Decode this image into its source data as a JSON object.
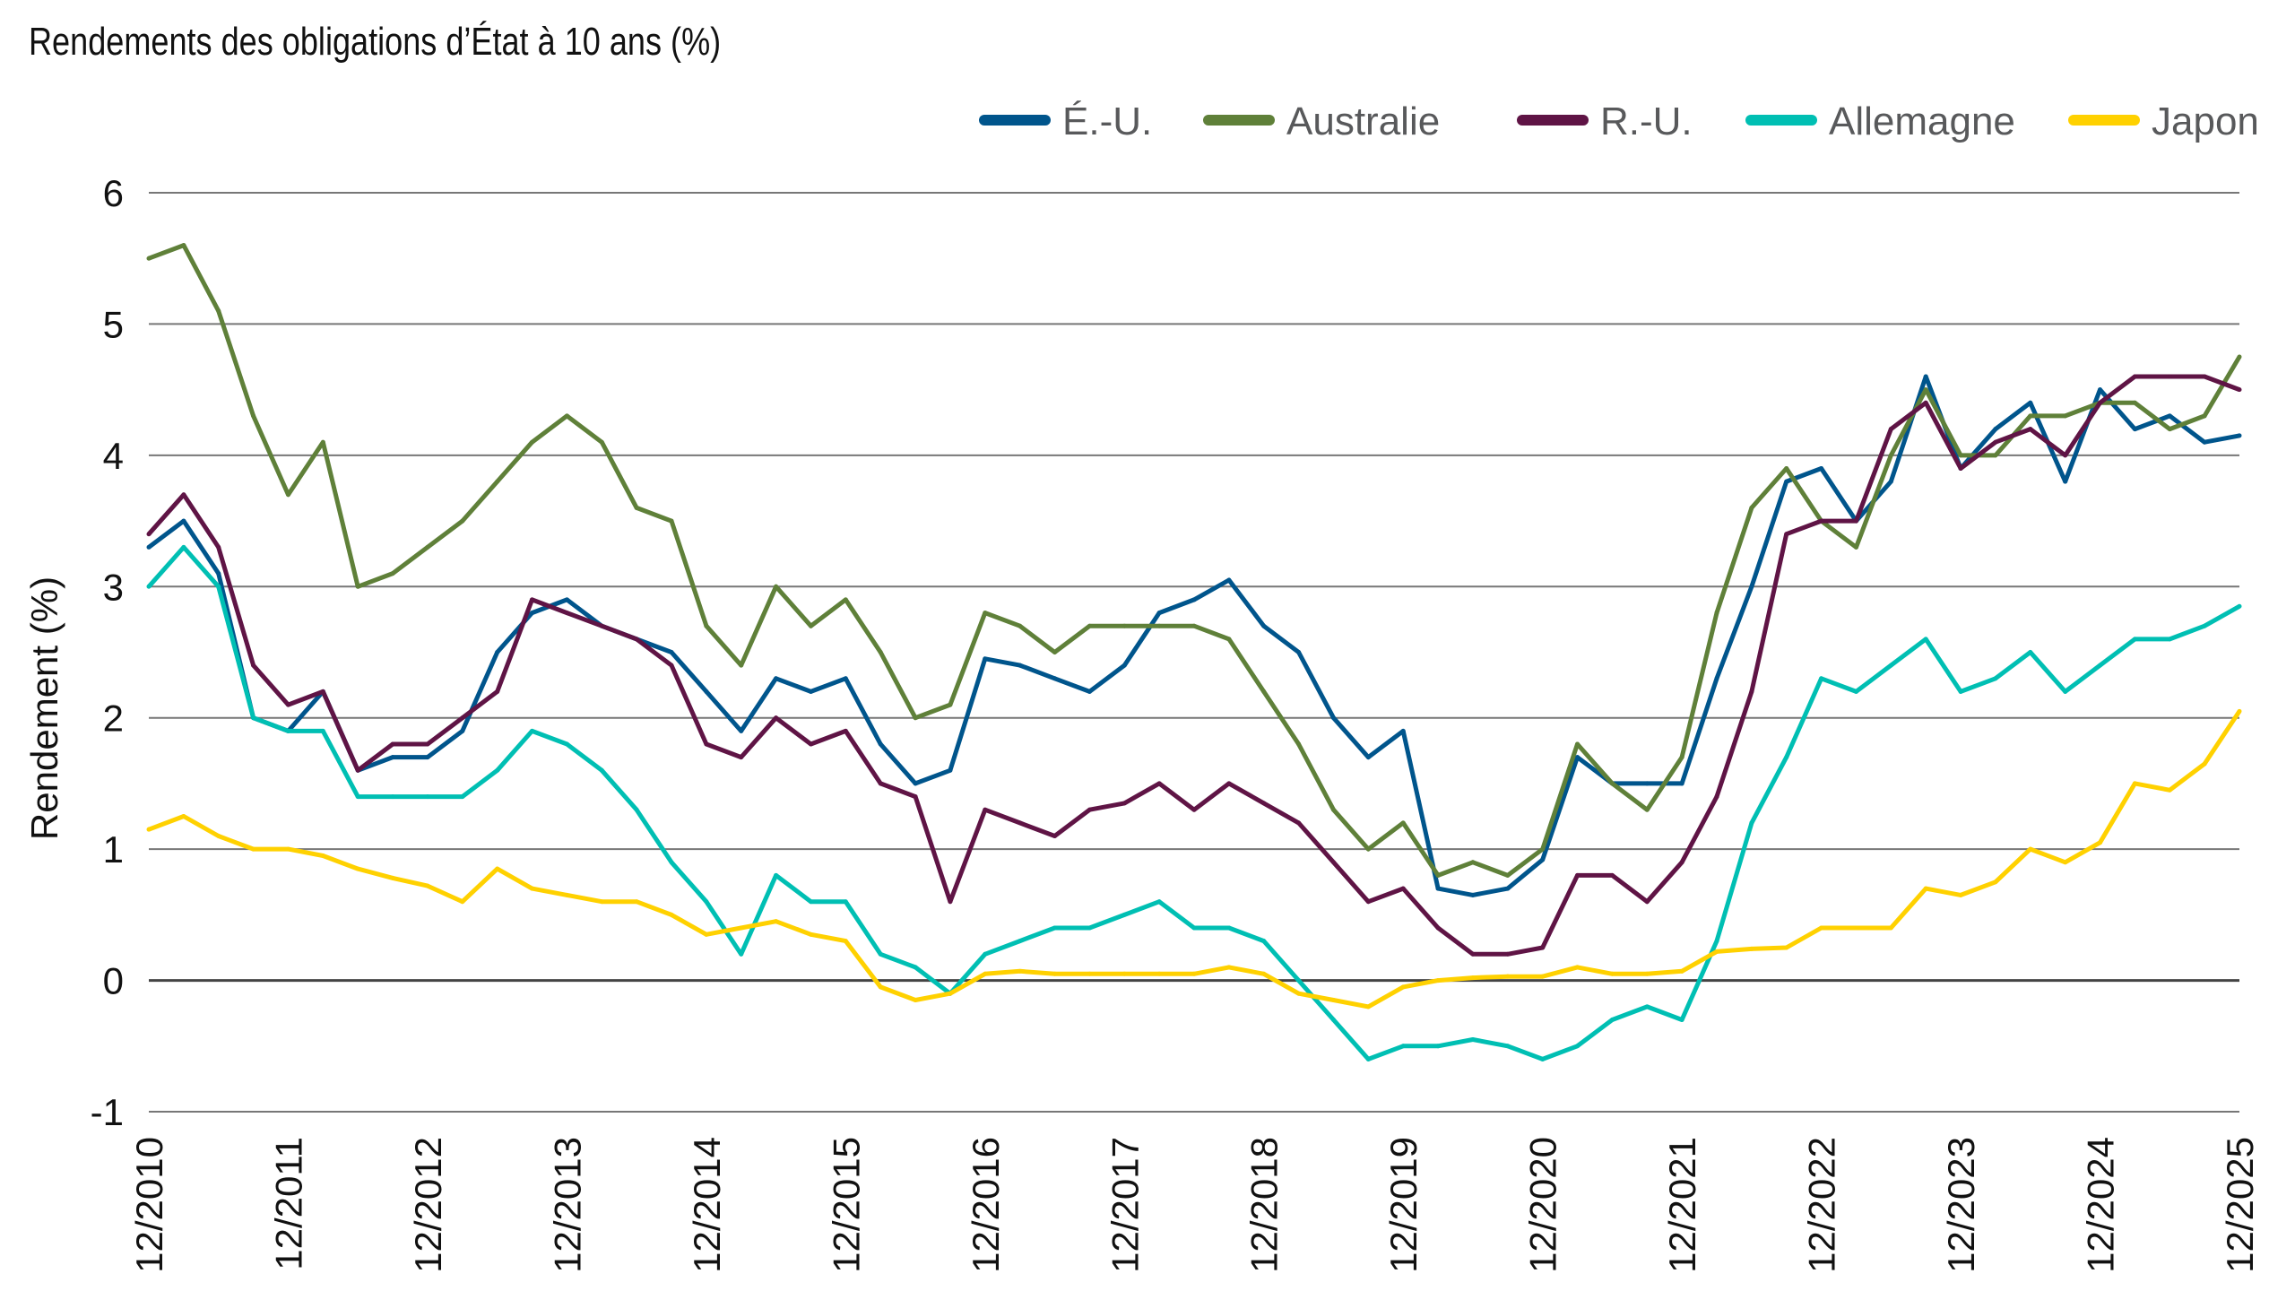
{
  "chart_data": {
    "type": "line",
    "title": "Rendements des obligations d’État à 10 ans (%)",
    "xlabel": "",
    "ylabel": "Rendement (%)",
    "ylim": [
      -1,
      6
    ],
    "yticks": [
      "-1",
      "0",
      "1",
      "2",
      "3",
      "4",
      "5",
      "6"
    ],
    "xticks": [
      "12/2010",
      "12/2011",
      "12/2012",
      "12/2013",
      "12/2014",
      "12/2015",
      "12/2016",
      "12/2017",
      "12/2018",
      "12/2019",
      "12/2020",
      "12/2021",
      "12/2022",
      "12/2023",
      "12/2024",
      "12/2025"
    ],
    "grid": "horizontal",
    "legend": "top-right",
    "x": [
      "2010-12",
      "2011-03",
      "2011-06",
      "2011-09",
      "2011-12",
      "2012-03",
      "2012-06",
      "2012-09",
      "2012-12",
      "2013-03",
      "2013-06",
      "2013-09",
      "2013-12",
      "2014-03",
      "2014-06",
      "2014-09",
      "2014-12",
      "2015-03",
      "2015-06",
      "2015-09",
      "2015-12",
      "2016-03",
      "2016-06",
      "2016-09",
      "2016-12",
      "2017-03",
      "2017-06",
      "2017-09",
      "2017-12",
      "2018-03",
      "2018-06",
      "2018-09",
      "2018-12",
      "2019-03",
      "2019-06",
      "2019-09",
      "2019-12",
      "2020-03",
      "2020-06",
      "2020-09",
      "2020-12",
      "2021-03",
      "2021-06",
      "2021-09",
      "2021-12",
      "2022-03",
      "2022-06",
      "2022-09",
      "2022-12",
      "2023-03",
      "2023-06",
      "2023-09",
      "2023-12",
      "2024-03",
      "2024-06",
      "2024-09",
      "2024-12",
      "2025-03",
      "2025-06",
      "2025-09",
      "2025-12"
    ],
    "series": [
      {
        "name": "É.-U.",
        "color": "#00558C",
        "values": [
          3.3,
          3.5,
          3.1,
          2.0,
          1.9,
          2.2,
          1.6,
          1.7,
          1.7,
          1.9,
          2.5,
          2.8,
          2.9,
          2.7,
          2.6,
          2.5,
          2.2,
          1.9,
          2.3,
          2.2,
          2.3,
          1.8,
          1.5,
          1.6,
          2.45,
          2.4,
          2.3,
          2.2,
          2.4,
          2.8,
          2.9,
          3.05,
          2.7,
          2.5,
          2.0,
          1.7,
          1.9,
          0.7,
          0.65,
          0.7,
          0.92,
          1.7,
          1.5,
          1.5,
          1.5,
          2.3,
          3.0,
          3.8,
          3.9,
          3.5,
          3.8,
          4.6,
          3.9,
          4.2,
          4.4,
          3.8,
          4.5,
          4.2,
          4.3,
          4.1,
          4.15
        ]
      },
      {
        "name": "Australie",
        "color": "#5F8039",
        "values": [
          5.5,
          5.6,
          5.1,
          4.3,
          3.7,
          4.1,
          3.0,
          3.1,
          3.3,
          3.5,
          3.8,
          4.1,
          4.3,
          4.1,
          3.6,
          3.5,
          2.7,
          2.4,
          3.0,
          2.7,
          2.9,
          2.5,
          2.0,
          2.1,
          2.8,
          2.7,
          2.5,
          2.7,
          2.7,
          2.7,
          2.7,
          2.6,
          2.2,
          1.8,
          1.3,
          1.0,
          1.2,
          0.8,
          0.9,
          0.8,
          1.0,
          1.8,
          1.5,
          1.3,
          1.7,
          2.8,
          3.6,
          3.9,
          3.5,
          3.3,
          4.0,
          4.5,
          4.0,
          4.0,
          4.3,
          4.3,
          4.4,
          4.4,
          4.2,
          4.3,
          4.75
        ]
      },
      {
        "name": "R.-U.",
        "color": "#5F1445",
        "values": [
          3.4,
          3.7,
          3.3,
          2.4,
          2.1,
          2.2,
          1.6,
          1.8,
          1.8,
          2.0,
          2.2,
          2.9,
          2.8,
          2.7,
          2.6,
          2.4,
          1.8,
          1.7,
          2.0,
          1.8,
          1.9,
          1.5,
          1.4,
          0.6,
          1.3,
          1.2,
          1.1,
          1.3,
          1.35,
          1.5,
          1.3,
          1.5,
          1.35,
          1.2,
          0.9,
          0.6,
          0.7,
          0.4,
          0.2,
          0.2,
          0.25,
          0.8,
          0.8,
          0.6,
          0.9,
          1.4,
          2.2,
          3.4,
          3.5,
          3.5,
          4.2,
          4.4,
          3.9,
          4.1,
          4.2,
          4.0,
          4.4,
          4.6,
          4.6,
          4.6,
          4.5
        ]
      },
      {
        "name": "Allemagne",
        "color": "#00BFB3",
        "values": [
          3.0,
          3.3,
          3.0,
          2.0,
          1.9,
          1.9,
          1.4,
          1.4,
          1.4,
          1.4,
          1.6,
          1.9,
          1.8,
          1.6,
          1.3,
          0.9,
          0.6,
          0.2,
          0.8,
          0.6,
          0.6,
          0.2,
          0.1,
          -0.1,
          0.2,
          0.3,
          0.4,
          0.4,
          0.5,
          0.6,
          0.4,
          0.4,
          0.3,
          0.0,
          -0.3,
          -0.6,
          -0.5,
          -0.5,
          -0.45,
          -0.5,
          -0.6,
          -0.5,
          -0.3,
          -0.2,
          -0.3,
          0.3,
          1.2,
          1.7,
          2.3,
          2.2,
          2.4,
          2.6,
          2.2,
          2.3,
          2.5,
          2.2,
          2.4,
          2.6,
          2.6,
          2.7,
          2.85
        ]
      },
      {
        "name": "Japon",
        "color": "#FFD100",
        "values": [
          1.15,
          1.25,
          1.1,
          1.0,
          1.0,
          0.95,
          0.85,
          0.78,
          0.72,
          0.6,
          0.85,
          0.7,
          0.65,
          0.6,
          0.6,
          0.5,
          0.35,
          0.4,
          0.45,
          0.35,
          0.3,
          -0.05,
          -0.15,
          -0.1,
          0.05,
          0.07,
          0.05,
          0.05,
          0.05,
          0.05,
          0.05,
          0.1,
          0.05,
          -0.1,
          -0.15,
          -0.2,
          -0.05,
          0.0,
          0.02,
          0.03,
          0.03,
          0.1,
          0.05,
          0.05,
          0.07,
          0.22,
          0.24,
          0.25,
          0.4,
          0.4,
          0.4,
          0.7,
          0.65,
          0.75,
          1.0,
          0.9,
          1.05,
          1.5,
          1.45,
          1.65,
          2.05
        ]
      }
    ]
  }
}
